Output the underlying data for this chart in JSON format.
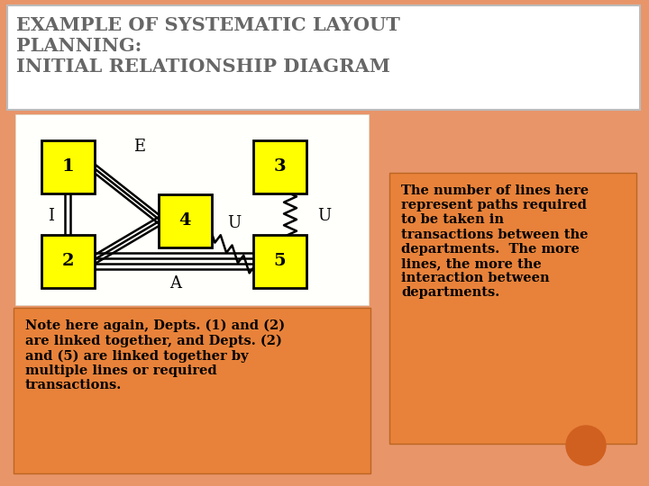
{
  "title_text": "EXAMPLE OF SYSTEMATIC LAYOUT\nPLANNING:\nINITIAL RELATIONSHIP DIAGRAM",
  "slide_bg": "#E8956A",
  "title_box_bg": "#FFFFFF",
  "title_font_size": 15,
  "title_color": "#666666",
  "node_color": "#FFFF00",
  "node_border": "#000000",
  "note_box_color": "#E8823A",
  "right_box_color": "#E8823A",
  "note_text": "Note here again, Depts. (1) and (2)\nare linked together, and Depts. (2)\nand (5) are linked together by\nmultiple lines or required\ntransactions.",
  "right_text": "The number of lines here\nrepresent paths required\nto be taken in\ntransactions between the\ndepartments.  The more\nlines, the more the\ninteraction between\ndepartments.",
  "circle_color": "#D06020"
}
